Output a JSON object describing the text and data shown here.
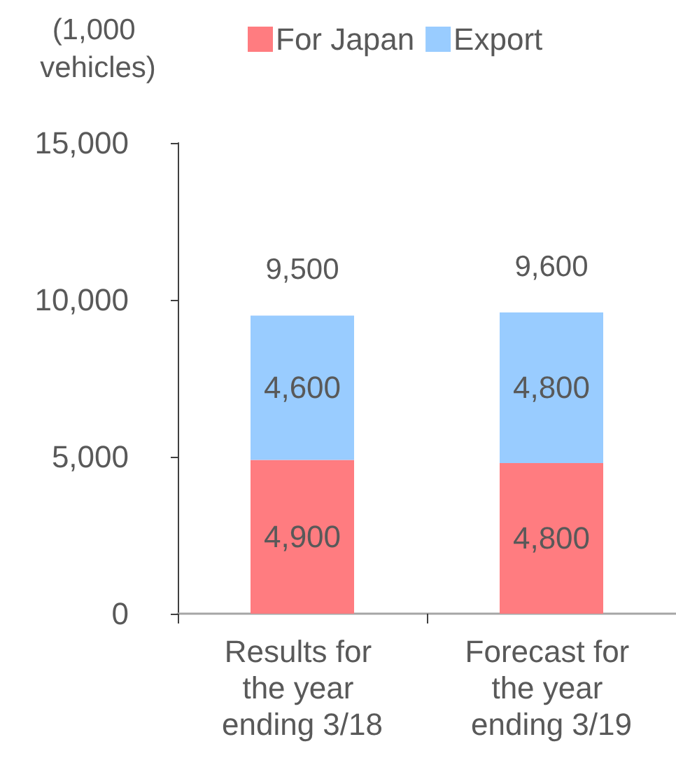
{
  "chart_data": {
    "type": "bar",
    "ylabel": "(1,000 vehicles)",
    "categories": [
      "Results for the year ending 3/18",
      "Forecast for the year ending 3/19"
    ],
    "series": [
      {
        "name": "For Japan",
        "color": "#ff7c80",
        "values": [
          4900,
          4800
        ],
        "value_labels": [
          "4,900",
          "4,800"
        ]
      },
      {
        "name": "Export",
        "color": "#99ccff",
        "values": [
          4600,
          4800
        ],
        "value_labels": [
          "4,600",
          "4,800"
        ]
      }
    ],
    "stacked": true,
    "ylim": [
      0,
      15000
    ],
    "yticks": [
      0,
      {
        "value": 5000,
        "label": "5,000"
      },
      {
        "value": 10000,
        "label": "10,000"
      },
      {
        "value": 15000,
        "label": "15,000"
      }
    ],
    "totals": [
      "9,500",
      "9,600"
    ],
    "grid": false,
    "legend": "top"
  }
}
